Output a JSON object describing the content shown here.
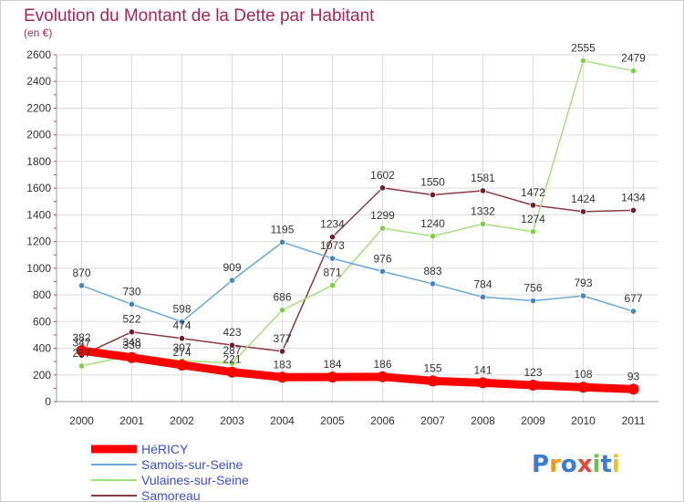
{
  "chart_data": {
    "type": "line",
    "title": "Evolution du Montant de la Dette par Habitant",
    "subtitle": "(en €)",
    "xlabel": "",
    "ylabel": "",
    "categories": [
      "2000",
      "2001",
      "2002",
      "2003",
      "2004",
      "2005",
      "2006",
      "2007",
      "2008",
      "2009",
      "2010",
      "2011"
    ],
    "ylim": [
      0,
      2600
    ],
    "yticks": [
      0,
      200,
      400,
      600,
      800,
      1000,
      1200,
      1400,
      1600,
      1800,
      2000,
      2200,
      2400,
      2600
    ],
    "grid": true,
    "legend_position": "bottom-left",
    "series": [
      {
        "name": "HéRICY",
        "color": "#ff0000",
        "point_color": "#ff0000",
        "values": [
          382,
          330,
          274,
          221,
          183,
          184,
          186,
          155,
          141,
          123,
          108,
          93
        ]
      },
      {
        "name": "Samois-sur-Seine",
        "color": "#6aa8d6",
        "point_color": "#3f88c5",
        "values": [
          870,
          730,
          598,
          909,
          1195,
          1073,
          976,
          883,
          784,
          756,
          793,
          677
        ]
      },
      {
        "name": "Vulaines-sur-Seine",
        "color": "#a4e07a",
        "point_color": "#7ed03c",
        "values": [
          267,
          348,
          307,
          287,
          686,
          871,
          1299,
          1240,
          1332,
          1274,
          2555,
          2479
        ]
      },
      {
        "name": "Samoreau",
        "color": "#8a3a42",
        "point_color": "#6e1e28",
        "values": [
          347,
          522,
          474,
          423,
          377,
          1234,
          1602,
          1550,
          1581,
          1472,
          1424,
          1434
        ]
      }
    ]
  },
  "logo": {
    "text": "Proxiti",
    "colors": [
      "#3a7bd5",
      "#f29a1d",
      "#3a7bd5",
      "#e04a3a",
      "#6cc04a",
      "#3a7bd5",
      "#f2c21d"
    ]
  }
}
